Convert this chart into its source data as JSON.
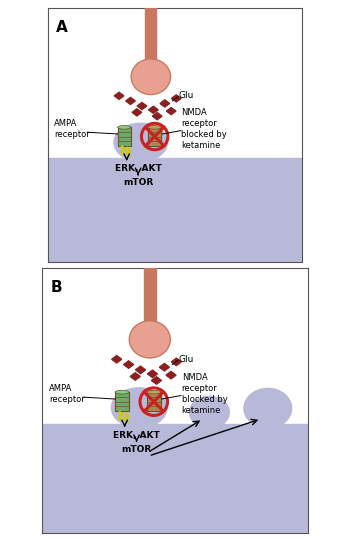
{
  "fig_width": 3.5,
  "fig_height": 5.41,
  "dpi": 100,
  "bg_color": "#ffffff",
  "border_color": "#555555",
  "lavender": "#b8b8d8",
  "white": "#ffffff",
  "soma_fill": "#e8a090",
  "soma_edge": "#c87860",
  "axon_color": "#c87860",
  "glu_color": "#8b2020",
  "ampa_fill": "#6aaa6a",
  "ampa_edge": "#665522",
  "nmda_fill": "#aa8855",
  "nmda_edge": "#665522",
  "nmda_top": "#cc9966",
  "red_circle": "#cc2020",
  "lightning": "#cccc00",
  "black": "#000000",
  "panel_A_label": "A",
  "panel_B_label": "B",
  "glu_label": "Glu",
  "ampa_label": "AMPA\nreceptor",
  "nmda_label": "NMDA\nreceptor\nblocked by\nketamine",
  "erk_label": "ERK, AKT",
  "mtor_label": "mTOR"
}
